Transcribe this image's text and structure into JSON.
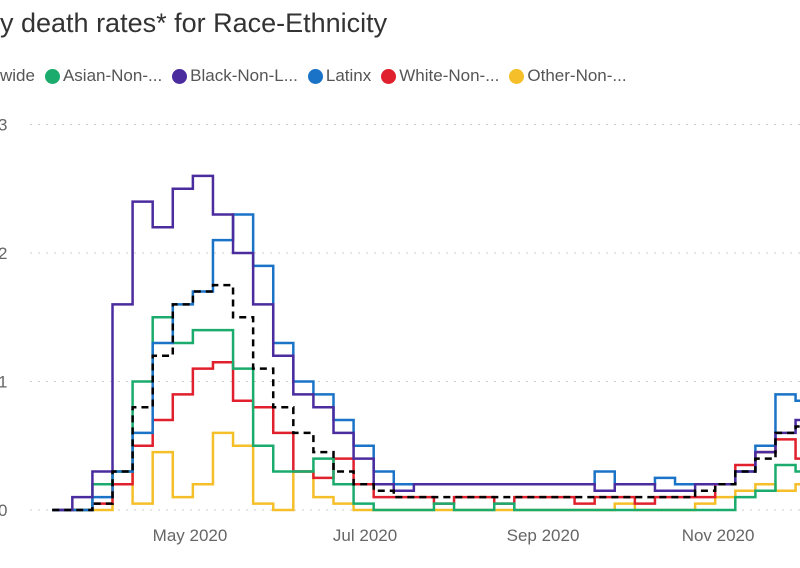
{
  "chart_data": {
    "type": "line",
    "title": "y death rates* for Race-Ethnicity",
    "xlabel": "",
    "ylabel": "",
    "ylim": [
      0,
      3
    ],
    "xlim": [
      "2020-02-25",
      "2020-12-01"
    ],
    "grid": true,
    "legend_placement": "top",
    "y_ticks": [
      "0",
      "1",
      "2",
      "3"
    ],
    "x_ticks": [
      {
        "label": "May 2020",
        "date": "2020-05-01"
      },
      {
        "label": "Jul 2020",
        "date": "2020-07-01"
      },
      {
        "label": "Sep 2020",
        "date": "2020-09-01"
      },
      {
        "label": "Nov 2020",
        "date": "2020-11-01"
      }
    ],
    "x": [
      "2020-03-14",
      "2020-03-21",
      "2020-03-28",
      "2020-04-04",
      "2020-04-11",
      "2020-04-18",
      "2020-04-25",
      "2020-05-02",
      "2020-05-09",
      "2020-05-16",
      "2020-05-23",
      "2020-05-30",
      "2020-06-06",
      "2020-06-13",
      "2020-06-20",
      "2020-06-27",
      "2020-07-04",
      "2020-07-11",
      "2020-07-18",
      "2020-07-25",
      "2020-08-01",
      "2020-08-08",
      "2020-08-15",
      "2020-08-22",
      "2020-08-29",
      "2020-09-05",
      "2020-09-12",
      "2020-09-19",
      "2020-09-26",
      "2020-10-03",
      "2020-10-10",
      "2020-10-17",
      "2020-10-24",
      "2020-10-31",
      "2020-11-07",
      "2020-11-14",
      "2020-11-21",
      "2020-11-28"
    ],
    "series": [
      {
        "name": "wide",
        "color": "#000000",
        "dashed": true,
        "values": [
          0,
          0,
          0.05,
          0.3,
          0.8,
          1.2,
          1.6,
          1.7,
          1.75,
          1.5,
          1.1,
          0.8,
          0.6,
          0.45,
          0.3,
          0.2,
          0.15,
          0.1,
          0.1,
          0.1,
          0.1,
          0.1,
          0.1,
          0.1,
          0.1,
          0.1,
          0.1,
          0.1,
          0.1,
          0.1,
          0.1,
          0.1,
          0.15,
          0.2,
          0.3,
          0.4,
          0.6,
          0.65
        ]
      },
      {
        "name": "Asian-Non-...",
        "color": "#1aab6d",
        "values": [
          0,
          0,
          0.2,
          0.3,
          1.0,
          1.5,
          1.3,
          1.4,
          1.4,
          1.1,
          0.5,
          0.3,
          0.3,
          0.4,
          0.2,
          0.05,
          0,
          0,
          0,
          0.05,
          0,
          0,
          0.05,
          0,
          0,
          0,
          0,
          0,
          0,
          0,
          0,
          0,
          0,
          0,
          0.1,
          0.15,
          0.35,
          0.3
        ]
      },
      {
        "name": "Black-Non-L...",
        "color": "#4b2c9f",
        "values": [
          0,
          0.1,
          0.3,
          1.6,
          2.4,
          2.2,
          2.5,
          2.6,
          2.3,
          2.0,
          1.6,
          1.2,
          0.9,
          0.8,
          0.6,
          0.4,
          0.2,
          0.15,
          0.2,
          0.2,
          0.2,
          0.2,
          0.2,
          0.2,
          0.2,
          0.2,
          0.2,
          0.15,
          0.2,
          0.2,
          0.15,
          0.15,
          0.2,
          0.2,
          0.3,
          0.45,
          0.6,
          0.7
        ]
      },
      {
        "name": "Latinx",
        "color": "#1a73c7",
        "values": [
          0,
          0,
          0.1,
          0.3,
          0.6,
          1.3,
          1.6,
          1.7,
          2.1,
          2.3,
          1.9,
          1.3,
          1.0,
          0.9,
          0.7,
          0.5,
          0.3,
          0.2,
          0.2,
          0.2,
          0.2,
          0.2,
          0.2,
          0.2,
          0.2,
          0.2,
          0.2,
          0.3,
          0.2,
          0.2,
          0.25,
          0.2,
          0.2,
          0.2,
          0.3,
          0.5,
          0.9,
          0.85
        ]
      },
      {
        "name": "White-Non-...",
        "color": "#e0202c",
        "values": [
          0,
          0,
          0.05,
          0.2,
          0.5,
          0.7,
          0.9,
          1.1,
          1.15,
          0.85,
          0.8,
          0.6,
          0.3,
          0.25,
          0.4,
          0.2,
          0.1,
          0.1,
          0.1,
          0.05,
          0.1,
          0.1,
          0.05,
          0.1,
          0.1,
          0.1,
          0.05,
          0.1,
          0.1,
          0.05,
          0.1,
          0.1,
          0.1,
          0.2,
          0.35,
          0.45,
          0.55,
          0.4
        ]
      },
      {
        "name": "Other-Non-...",
        "color": "#f5bf2a",
        "values": [
          0,
          0,
          0,
          0.3,
          0.05,
          0.45,
          0.1,
          0.2,
          0.6,
          0.5,
          0.05,
          0,
          0.3,
          0.1,
          0.05,
          0,
          0,
          0,
          0,
          0,
          0,
          0,
          0,
          0,
          0,
          0,
          0,
          0,
          0.05,
          0,
          0,
          0,
          0.05,
          0.1,
          0.15,
          0.2,
          0.15,
          0.2
        ]
      }
    ]
  }
}
